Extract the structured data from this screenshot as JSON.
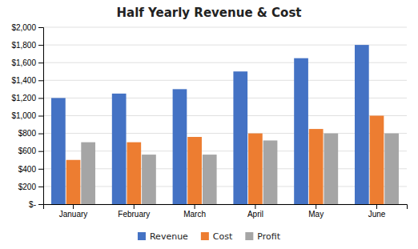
{
  "chart_data": {
    "type": "bar",
    "title": "Half Yearly Revenue & Cost",
    "categories": [
      "January",
      "February",
      "March",
      "April",
      "May",
      "June"
    ],
    "series": [
      {
        "name": "Revenue",
        "color": "#4472C4",
        "values": [
          1200,
          1250,
          1300,
          1500,
          1650,
          1800
        ]
      },
      {
        "name": "Cost",
        "color": "#ED7D31",
        "values": [
          500,
          700,
          760,
          800,
          850,
          1000
        ]
      },
      {
        "name": "Profit",
        "color": "#A5A5A5",
        "values": [
          700,
          560,
          560,
          720,
          800,
          800
        ]
      }
    ],
    "ylim": [
      0,
      2000
    ],
    "yticks": [
      {
        "value": 0,
        "label": "$-"
      },
      {
        "value": 200,
        "label": "$200"
      },
      {
        "value": 400,
        "label": "$400"
      },
      {
        "value": 600,
        "label": "$600"
      },
      {
        "value": 800,
        "label": "$800"
      },
      {
        "value": 1000,
        "label": "$1,000"
      },
      {
        "value": 1200,
        "label": "$1,200"
      },
      {
        "value": 1400,
        "label": "$1,400"
      },
      {
        "value": 1600,
        "label": "$1,600"
      },
      {
        "value": 1800,
        "label": "$1,800"
      },
      {
        "value": 2000,
        "label": "$2,000"
      }
    ],
    "grid": true,
    "legend": "bottom"
  }
}
